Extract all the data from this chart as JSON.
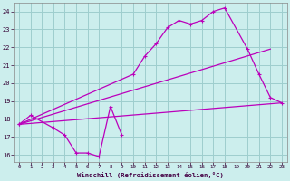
{
  "xlabel": "Windchill (Refroidissement éolien,°C)",
  "bg_color": "#cceeed",
  "grid_color": "#9ecece",
  "line_color": "#bb00bb",
  "xlim": [
    -0.5,
    23.5
  ],
  "ylim": [
    15.6,
    24.5
  ],
  "yticks": [
    16,
    17,
    18,
    19,
    20,
    21,
    22,
    23,
    24
  ],
  "xticks": [
    0,
    1,
    2,
    3,
    4,
    5,
    6,
    7,
    8,
    9,
    10,
    11,
    12,
    13,
    14,
    15,
    16,
    17,
    18,
    19,
    20,
    21,
    22,
    23
  ],
  "line1_x": [
    0,
    1,
    3,
    4,
    5,
    6,
    7,
    8,
    9
  ],
  "line1_y": [
    17.7,
    18.2,
    17.5,
    17.1,
    16.1,
    16.1,
    15.9,
    18.7,
    17.1
  ],
  "line2_x": [
    0,
    10,
    11,
    12,
    13,
    14,
    15,
    16,
    17,
    18,
    20,
    21,
    22,
    23
  ],
  "line2_y": [
    17.7,
    20.5,
    21.5,
    22.2,
    23.1,
    23.5,
    23.3,
    23.5,
    24.0,
    24.2,
    21.9,
    20.5,
    19.2,
    18.9
  ],
  "line3_x": [
    0,
    22
  ],
  "line3_y": [
    17.7,
    21.9
  ],
  "line4_x": [
    0,
    23
  ],
  "line4_y": [
    17.7,
    18.9
  ]
}
